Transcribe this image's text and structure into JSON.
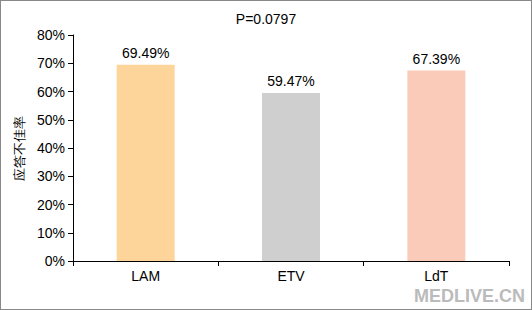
{
  "chart_data": {
    "type": "bar",
    "title": "P=0.0797",
    "y_label": "应答不佳率",
    "categories": [
      "LAM",
      "ETV",
      "LdT"
    ],
    "values": [
      69.49,
      59.47,
      67.39
    ],
    "value_labels": [
      "69.49%",
      "59.47%",
      "67.39%"
    ],
    "colors": [
      "#FDD59A",
      "#CFCFCF",
      "#FACBB8"
    ],
    "ylim": [
      0,
      80
    ],
    "yticks": [
      {
        "value": 0,
        "label": "0%"
      },
      {
        "value": 10,
        "label": "10%"
      },
      {
        "value": 20,
        "label": "20%"
      },
      {
        "value": 30,
        "label": "30%"
      },
      {
        "value": 40,
        "label": "40%"
      },
      {
        "value": 50,
        "label": "50%"
      },
      {
        "value": 60,
        "label": "60%"
      },
      {
        "value": 70,
        "label": "70%"
      },
      {
        "value": 80,
        "label": "80%"
      }
    ],
    "grid": false,
    "data_labels": true,
    "annotations": [
      "MEDLIVE.CN"
    ]
  }
}
